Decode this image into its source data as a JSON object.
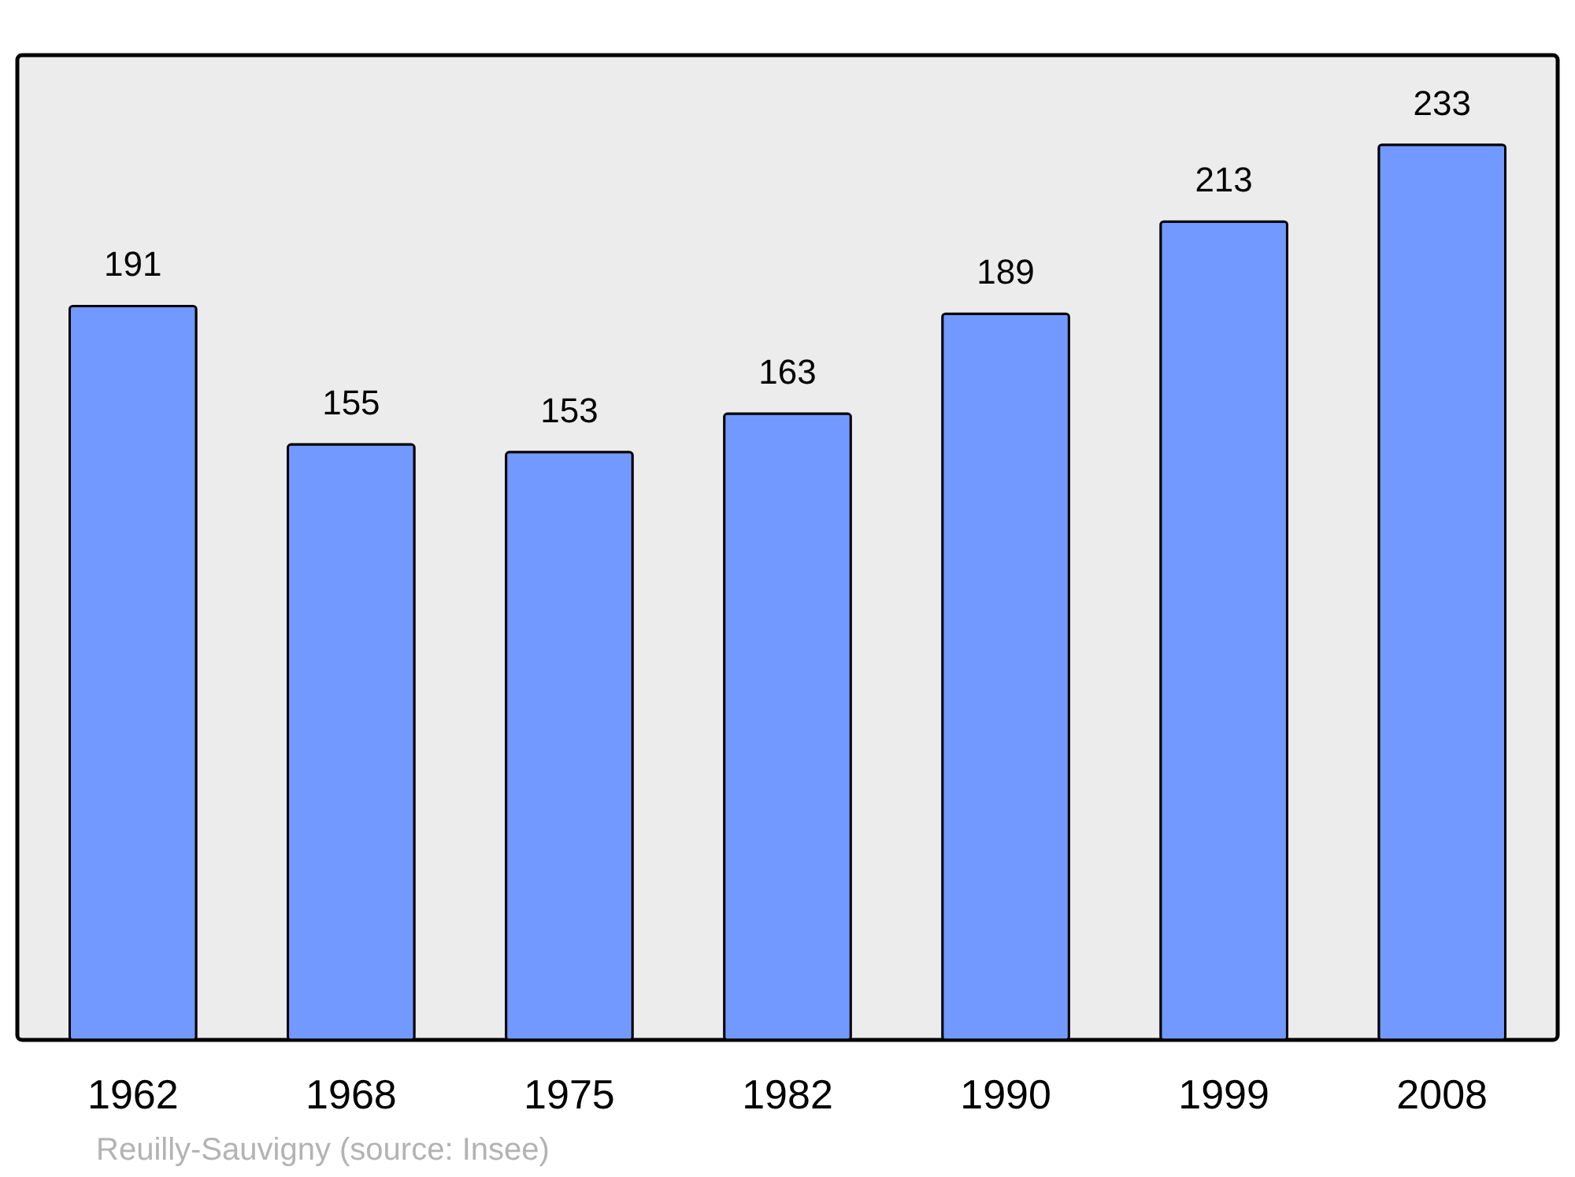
{
  "chart_data": {
    "type": "bar",
    "categories": [
      "1962",
      "1968",
      "1975",
      "1982",
      "1990",
      "1999",
      "2008"
    ],
    "values": [
      191,
      155,
      153,
      163,
      189,
      213,
      233
    ],
    "color": "#7299ff",
    "data_labels": true,
    "grid": false,
    "annotations": [
      "Reuilly-Sauvigny    (source: Insee)"
    ]
  }
}
